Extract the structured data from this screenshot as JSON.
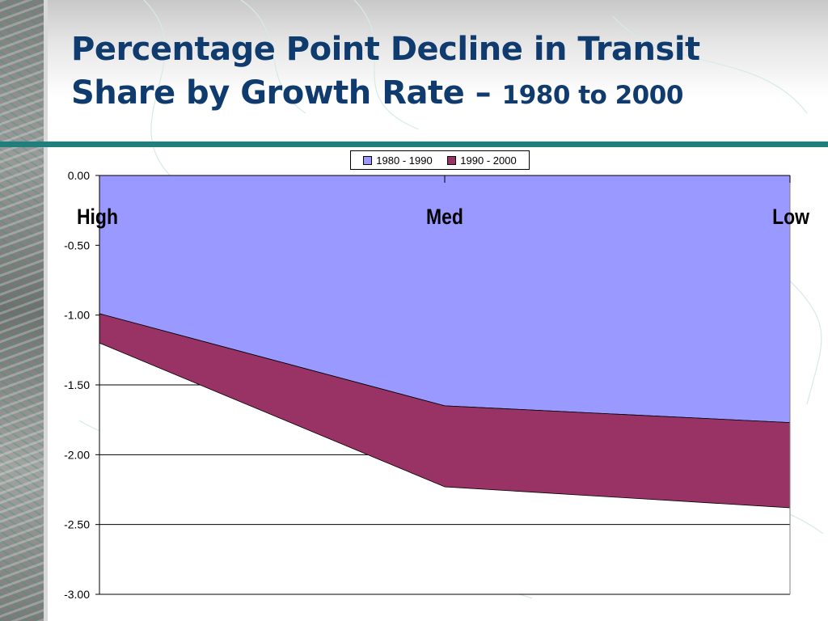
{
  "slide": {
    "title_line1": "Percentage Point Decline in Transit",
    "title_line2": "Share by Growth Rate –",
    "title_sub": "1980 to 2000"
  },
  "chart_data": {
    "type": "area",
    "stacked": true,
    "categories": [
      "High",
      "Med",
      "Low"
    ],
    "series": [
      {
        "name": "1980 - 1990",
        "values": [
          -0.99,
          -1.65,
          -1.77
        ],
        "color": "#9999ff"
      },
      {
        "name": "1990 - 2000",
        "values": [
          -0.21,
          -0.58,
          -0.61
        ],
        "color": "#993366"
      }
    ],
    "ylim": [
      -3.0,
      0.0
    ],
    "yticks": [
      "0.00",
      "-0.50",
      "-1.00",
      "-1.50",
      "-2.00",
      "-2.50",
      "-3.00"
    ],
    "ytick_values": [
      0,
      -0.5,
      -1.0,
      -1.5,
      -2.0,
      -2.5,
      -3.0
    ],
    "grid": true,
    "legend_position": "top"
  }
}
